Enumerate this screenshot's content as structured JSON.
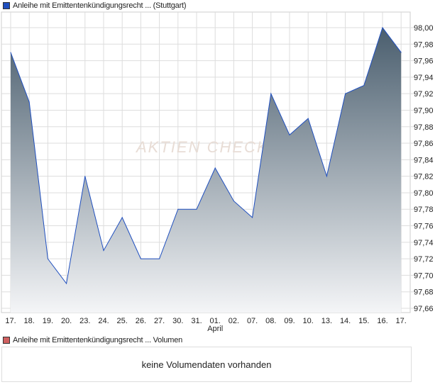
{
  "legend_price": "Anleihe mit Emittentenkündigungsrecht ... (Stuttgart)",
  "legend_volume": "Anleihe mit Emittentenkündigungsrecht ... Volumen",
  "no_volume": "keine Volumendaten vorhanden",
  "watermark": "AKTIEN CHECK",
  "colors": {
    "line": "#1f4fbf",
    "fill_top": "#4a5e6e",
    "fill_bottom": "#f4f5f7",
    "price_marker": "#1f4fbf",
    "volume_marker": "#d06060"
  },
  "chart_data": {
    "type": "area",
    "title": "",
    "categories": [
      "17.",
      "18.",
      "19.",
      "20.",
      "23.",
      "24.",
      "25.",
      "26.",
      "27.",
      "30.",
      "31.",
      "01.",
      "02.",
      "07.",
      "08.",
      "09.",
      "10.",
      "13.",
      "14.",
      "15.",
      "16.",
      "17."
    ],
    "month_label": "April",
    "series": [
      {
        "values": [
          97.97,
          97.91,
          97.72,
          97.69,
          97.82,
          97.73,
          97.77,
          97.72,
          97.72,
          97.78,
          97.78,
          97.83,
          97.79,
          97.77,
          97.92,
          97.87,
          97.89,
          97.82,
          97.92,
          97.93,
          98.0,
          97.97
        ]
      }
    ],
    "ylim": [
      97.66,
      98.0
    ],
    "yticks": [
      "98,00",
      "97,98",
      "97,96",
      "97,94",
      "97,92",
      "97,90",
      "97,88",
      "97,86",
      "97,84",
      "97,82",
      "97,80",
      "97,78",
      "97,76",
      "97,74",
      "97,72",
      "97,70",
      "97,68",
      "97,66"
    ],
    "grid": true,
    "y_axis_position": "right"
  }
}
